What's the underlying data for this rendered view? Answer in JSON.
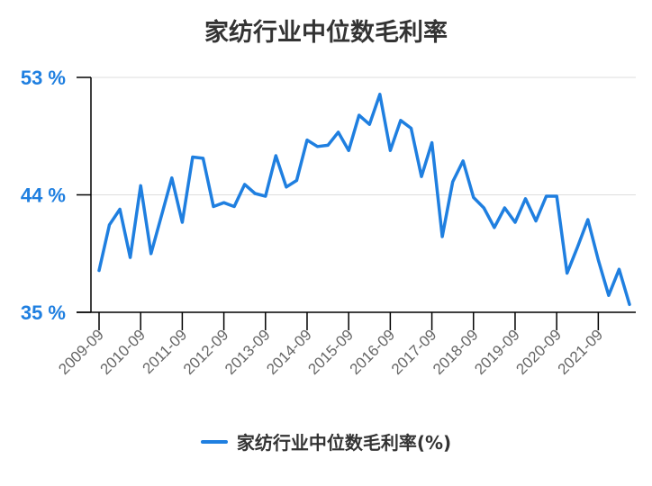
{
  "chart_data": {
    "type": "line",
    "title": "家纺行业中位数毛利率",
    "xlabel": "",
    "ylabel": "",
    "ylim": [
      35,
      53
    ],
    "yticks": [
      "35 %",
      "44 %",
      "53 %"
    ],
    "yticks_values": [
      35,
      44,
      53
    ],
    "xticks": [
      "2009-09",
      "2010-09",
      "2011-09",
      "2012-09",
      "2013-09",
      "2014-09",
      "2015-09",
      "2016-09",
      "2017-09",
      "2018-09",
      "2019-09",
      "2020-09",
      "2021-09"
    ],
    "color": "#1f7fe0",
    "grid": "horizontal",
    "legend": "bottom",
    "series": [
      {
        "name": "家纺行业中位数毛利率(%)",
        "x": [
          "2009-09",
          "2009-12",
          "2010-03",
          "2010-06",
          "2010-09",
          "2010-12",
          "2011-03",
          "2011-06",
          "2011-09",
          "2011-12",
          "2012-03",
          "2012-06",
          "2012-09",
          "2012-12",
          "2013-03",
          "2013-06",
          "2013-09",
          "2013-12",
          "2014-03",
          "2014-06",
          "2014-09",
          "2014-12",
          "2015-03",
          "2015-06",
          "2015-09",
          "2015-12",
          "2016-03",
          "2016-06",
          "2016-09",
          "2016-12",
          "2017-03",
          "2017-06",
          "2017-09",
          "2017-12",
          "2018-03",
          "2018-06",
          "2018-09",
          "2018-12",
          "2019-03",
          "2019-06",
          "2019-09",
          "2019-12",
          "2020-03",
          "2020-06",
          "2020-09",
          "2020-12",
          "2021-03",
          "2021-06",
          "2021-09",
          "2021-12",
          "2022-03",
          "2022-06"
        ],
        "values": [
          38.2,
          41.7,
          42.9,
          39.2,
          44.7,
          39.5,
          42.4,
          45.3,
          41.9,
          46.9,
          46.8,
          43.1,
          43.4,
          43.1,
          44.8,
          44.1,
          43.9,
          47.0,
          44.6,
          45.1,
          48.2,
          47.7,
          47.8,
          48.8,
          47.4,
          50.1,
          49.4,
          51.7,
          47.4,
          49.7,
          49.1,
          45.4,
          48.0,
          40.8,
          45.0,
          46.6,
          43.8,
          43.0,
          41.5,
          43.0,
          41.9,
          43.7,
          42.0,
          43.9,
          43.9,
          38.0,
          40.0,
          42.1,
          39.0,
          36.3,
          38.3,
          35.6
        ]
      }
    ]
  },
  "legend": {
    "label": "家纺行业中位数毛利率(%)"
  }
}
